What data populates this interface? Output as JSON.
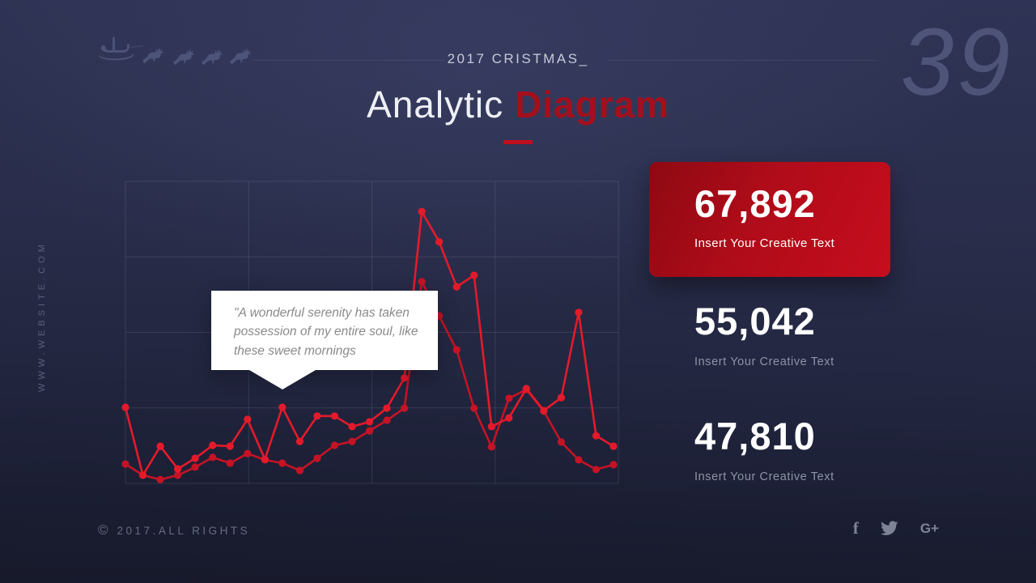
{
  "slide": {
    "page_number": "39",
    "kicker": "2017 CRISTMAS_",
    "title_primary": "Analytic ",
    "title_accent": "Diagram",
    "website_vertical": "WWW.WEBSITE.COM",
    "copyright_symbol": "©",
    "footer_copyright": "2017.ALL RIGHTS"
  },
  "tooltip": {
    "text": "\"A wonderful serenity has taken possession of my entire soul, like these sweet mornings"
  },
  "stats": [
    {
      "value": "67,892",
      "label": "Insert Your Creative Text",
      "highlighted": true
    },
    {
      "value": "55,042",
      "label": "Insert Your Creative Text",
      "highlighted": false
    },
    {
      "value": "47,810",
      "label": "Insert Your Creative Text",
      "highlighted": false
    }
  ],
  "social": [
    {
      "name": "facebook",
      "glyph": "f"
    },
    {
      "name": "twitter"
    },
    {
      "name": "google-plus",
      "glyph": "G+"
    }
  ],
  "colors": {
    "accent_red": "#c10f1f",
    "title_accent_red": "#a50f1c",
    "card_gradient_start": "#8e0913",
    "card_gradient_end": "#c60d1e",
    "background_top": "#2f3355",
    "background_bottom": "#171a2b",
    "line_a": "#e41a2b",
    "line_b": "#c51325"
  },
  "chart_data": {
    "type": "line",
    "title": "Analytic Diagram",
    "xlabel": "",
    "ylabel": "",
    "ylim": [
      0,
      100
    ],
    "grid": true,
    "axis_tick_labels_visible": false,
    "legend_position": "none",
    "categories": [
      1,
      2,
      3,
      4,
      5,
      6,
      7,
      8,
      9,
      10,
      11,
      12,
      13,
      14,
      15,
      16,
      17,
      18,
      19,
      20,
      21,
      22,
      23,
      24,
      25,
      26,
      27,
      28,
      29
    ],
    "series": [
      {
        "name": "line-a",
        "color": "#e41a2b",
        "values": [
          25.2,
          2.7,
          12.3,
          4.8,
          8.3,
          12.6,
          12.3,
          21.2,
          8.0,
          25.2,
          13.9,
          22.3,
          22.3,
          18.8,
          20.4,
          24.9,
          34.9,
          90.0,
          80.0,
          65.1,
          68.9,
          18.8,
          21.7,
          31.4,
          24.1,
          28.4,
          56.6,
          15.8,
          12.3
        ]
      },
      {
        "name": "line-b",
        "color": "#c51325",
        "values": [
          6.4,
          2.7,
          1.3,
          2.7,
          5.4,
          8.6,
          6.7,
          9.9,
          7.8,
          6.7,
          4.3,
          8.3,
          12.6,
          13.9,
          17.4,
          20.9,
          24.9,
          66.8,
          55.5,
          44.2,
          24.9,
          12.1,
          28.2,
          31.1,
          23.9,
          13.7,
          7.8,
          4.6,
          6.2
        ]
      }
    ]
  }
}
